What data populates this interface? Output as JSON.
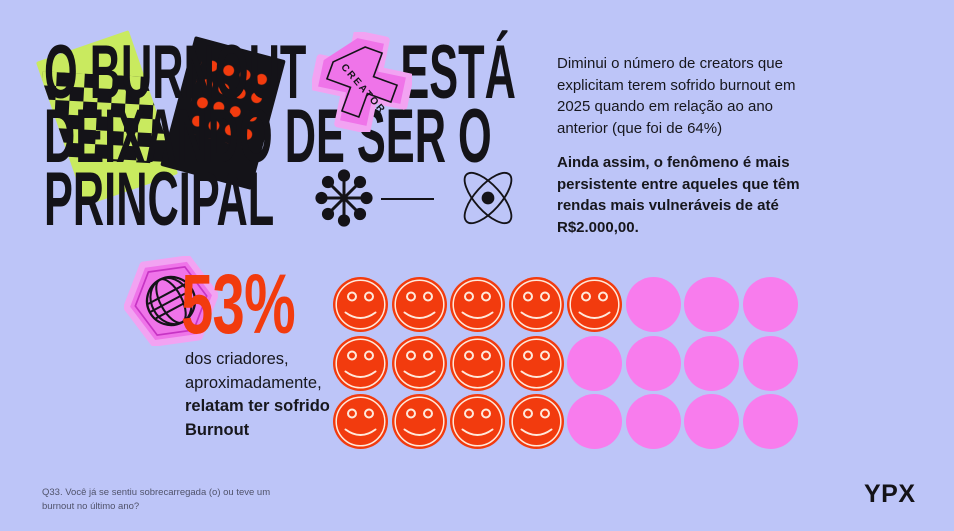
{
  "colors": {
    "bg": "#bdc5f8",
    "ink": "#141318",
    "orange": "#f23b0e",
    "pinkdot": "#f87ced",
    "pink_halo": "#f2a3f2",
    "pink_body": "#ef74e9",
    "magenta_outline": "#c734c4",
    "lime": "#c9ea5f",
    "face_stroke": "#ffe9db"
  },
  "header": {
    "line1_a": "O BURNOUT",
    "line1_b": "ESTÁ",
    "line2": "DEIXANDO DE SER O",
    "line3": "PRINCIPAL",
    "creator_sticker_label": "CREATOR"
  },
  "intro": {
    "lead": "Diminui o número de creators que explicitam terem sofrido burnout em 2025 quando em relação ao ano anterior (que foi de 64%)",
    "highlight": "Ainda assim, o fenômeno é mais persistente entre aqueles que têm rendas mais vulneráveis de até R$2.000,00."
  },
  "stat": {
    "value": "53%",
    "caption_regular": "dos criadores, aproximadamente, ",
    "caption_bold": "relatam ter sofrido Burnout"
  },
  "chart_data": {
    "type": "pictogram",
    "title": "53% dos criadores, aproximadamente, relatam ter sofrido Burnout",
    "value_pct": 53,
    "previous_year_pct": 64,
    "total_icons": 24,
    "filled_icons": 13,
    "grid": [
      [
        "sad",
        "sad",
        "sad",
        "sad",
        "sad",
        "plain",
        "plain",
        "plain"
      ],
      [
        "sad",
        "sad",
        "sad",
        "sad",
        "plain",
        "plain",
        "plain",
        "plain"
      ],
      [
        "sad",
        "sad",
        "sad",
        "sad",
        "plain",
        "plain",
        "plain",
        "plain"
      ]
    ]
  },
  "footnote": "Q33. Você já se sentiu sobrecarregada (o) ou teve um burnout no último ano?",
  "logo": "YPX"
}
